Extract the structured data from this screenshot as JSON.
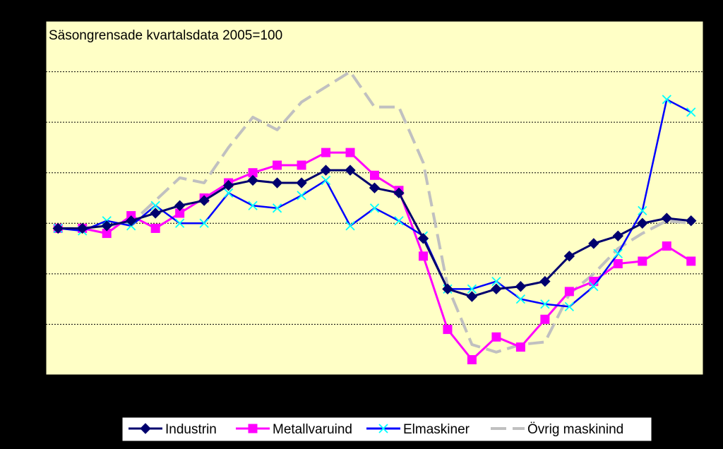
{
  "chart_data": {
    "type": "line",
    "title": "Säsongrensade kvartalsdata 2005=100",
    "xlabel": "",
    "ylabel": "",
    "ylim": [
      70,
      140
    ],
    "gridlines_y": [
      80,
      90,
      100,
      110,
      120,
      130
    ],
    "grid": "horizontal dotted",
    "legend_placement": "bottom",
    "background_color": "#FFFFC6",
    "series": [
      {
        "name": "Industrin",
        "color": "#00006E",
        "marker": "diamond",
        "values": [
          99,
          99,
          99.5,
          100.5,
          102,
          103.5,
          104.5,
          107.5,
          108.5,
          108,
          108,
          110.5,
          110.5,
          107,
          106,
          97,
          87,
          85.5,
          87,
          87.5,
          88.5,
          93.5,
          96,
          97.5,
          100,
          101,
          100.5
        ]
      },
      {
        "name": "Metallvaruind",
        "color": "#FF00FF",
        "marker": "square",
        "values": [
          99,
          99,
          98,
          101.5,
          99,
          102,
          105,
          108,
          110,
          111.5,
          111.5,
          114,
          114,
          109.5,
          106.5,
          93.5,
          79,
          73,
          77.5,
          75.5,
          81,
          86.5,
          88.5,
          92,
          92.5,
          95.5,
          92.5
        ]
      },
      {
        "name": "Elmaskiner",
        "color": "#0000FF",
        "marker": "x",
        "marker_color": "#00FFFF",
        "values": [
          99,
          98.5,
          100.5,
          99.5,
          103.5,
          100,
          100,
          106,
          103.5,
          103,
          105.5,
          108.5,
          99.5,
          103,
          100.5,
          97.5,
          87,
          87,
          88.5,
          85,
          84,
          83.5,
          87.5,
          94,
          102.5,
          124.5,
          122
        ]
      },
      {
        "name": "Övrig maskinind",
        "color": "#C0C0C0",
        "marker": "none",
        "dashed": true,
        "values": [
          99,
          99,
          99.5,
          100,
          104.5,
          109,
          108,
          115,
          121,
          118.5,
          124,
          127,
          130,
          123,
          123,
          112,
          87.5,
          76,
          74.5,
          76,
          76.5,
          86,
          90,
          95,
          98,
          100.5,
          100
        ]
      }
    ]
  }
}
